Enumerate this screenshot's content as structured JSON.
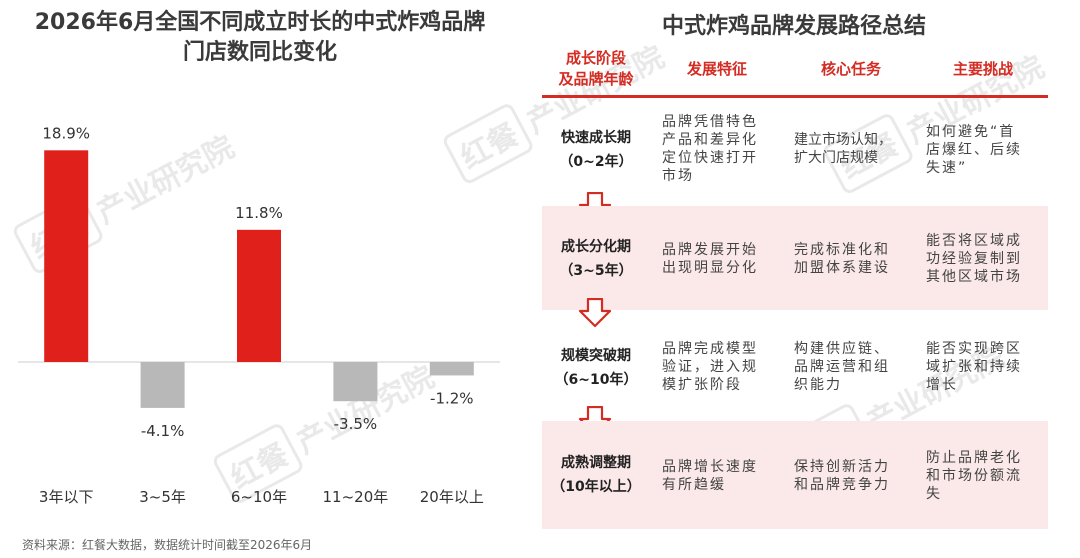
{
  "chart_data": {
    "type": "bar",
    "title": "2026年6月全国不同成立时长的中式炸鸡品牌门店数同比变化",
    "categories": [
      "3年以下",
      "3~5年",
      "6~10年",
      "11~20年",
      "20年以上"
    ],
    "values": [
      18.9,
      -4.1,
      11.8,
      -3.5,
      -1.2
    ],
    "value_labels": [
      "18.9%",
      "-4.1%",
      "11.8%",
      "-3.5%",
      "-1.2%"
    ],
    "colors": [
      "#e0201b",
      "#b8b8b8",
      "#e0201b",
      "#b8b8b8",
      "#b8b8b8"
    ],
    "ylim": [
      -10,
      25
    ],
    "xlabel": "",
    "ylabel": "",
    "grid": false,
    "legend": "none"
  },
  "left": {
    "title_line1": "2026年6月全国不同成立时长的中式炸鸡品牌",
    "title_line2": "门店数同比变化",
    "source": "资料来源：红餐大数据，数据统计时间截至2026年6月"
  },
  "watermark": {
    "logo": "红餐",
    "text": "产业研究院"
  },
  "right": {
    "title": "中式炸鸡品牌发展路径总结",
    "headers": {
      "stage_line1": "成长阶段",
      "stage_line2": "及品牌年龄",
      "feature": "发展特征",
      "task": "核心任务",
      "challenge": "主要挑战"
    },
    "rows": [
      {
        "stage": "快速成长期",
        "age": "（0~2年）",
        "feature": [
          "品牌凭借特色",
          "产品和差异化",
          "定位快速打开",
          "市场"
        ],
        "task": [
          "建立市场认知，",
          "扩大门店规模"
        ],
        "challenge": [
          "如何避免“首",
          "店爆红、后续",
          "失速”"
        ]
      },
      {
        "stage": "成长分化期",
        "age": "（3~5年）",
        "feature": [
          "品牌发展开始",
          "出现明显分化"
        ],
        "task": [
          "完成标准化和",
          "加盟体系建设"
        ],
        "challenge": [
          "能否将区域成",
          "功经验复制到",
          "其他区域市场"
        ]
      },
      {
        "stage": "规模突破期",
        "age": "（6~10年）",
        "feature": [
          "品牌完成模型",
          "验证，进入规",
          "模扩张阶段"
        ],
        "task": [
          "构建供应链、",
          "品牌运营和组",
          "织能力"
        ],
        "challenge": [
          "能否实现跨区",
          "域扩张和持续",
          "增长"
        ]
      },
      {
        "stage": "成熟调整期",
        "age": "（10年以上）",
        "feature": [
          "品牌增长速度",
          "有所趋缓"
        ],
        "task": [
          "保持创新活力",
          "和品牌竞争力"
        ],
        "challenge": [
          "防止品牌老化",
          "和市场份额流",
          "失"
        ]
      }
    ]
  }
}
